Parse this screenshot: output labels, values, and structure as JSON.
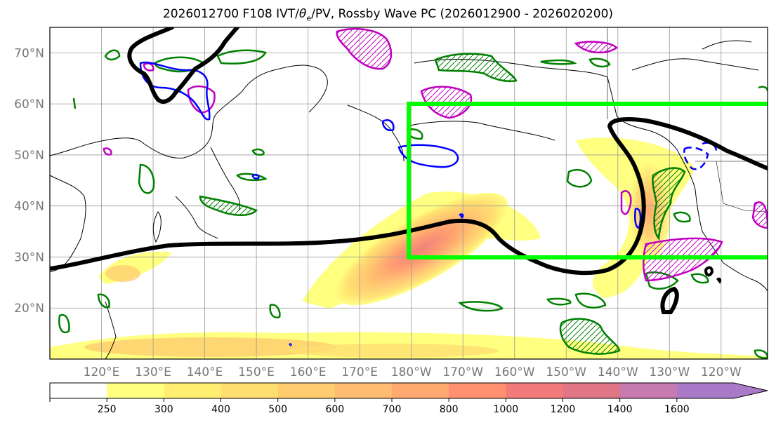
{
  "title": {
    "prefix": "2026012700 F108 IVT/",
    "theta": "θ",
    "sub": "e",
    "suffix": "/PV, Rossby Wave PC (2026012900 - 2026020200)"
  },
  "map": {
    "lat_labels": [
      "70°N",
      "60°N",
      "50°N",
      "40°N",
      "30°N",
      "20°N"
    ],
    "lat_values": [
      70,
      60,
      50,
      40,
      30,
      20
    ],
    "lon_labels": [
      "120°E",
      "130°E",
      "140°E",
      "150°E",
      "160°E",
      "170°E",
      "180°W",
      "170°W",
      "160°W",
      "150°W",
      "140°W",
      "130°W",
      "120°W"
    ],
    "lon_values": [
      120,
      130,
      140,
      150,
      160,
      170,
      180,
      190,
      200,
      210,
      220,
      230,
      240
    ],
    "extent": {
      "lon_min": 110,
      "lon_max": 249,
      "lat_min": 10,
      "lat_max": 75
    },
    "colors": {
      "ivt_shading": "#ffe566",
      "box": "#00ff00",
      "pv_contour": "#000000",
      "theta_e_pos": "#008000",
      "theta_e_neg": "#0000ff",
      "theta_e_alt": "#c000c0",
      "coast": "#000000",
      "grid": "#999999"
    }
  },
  "colorbar": {
    "ticks": [
      "250",
      "300",
      "400",
      "500",
      "600",
      "700",
      "800",
      "1000",
      "1200",
      "1400",
      "1600"
    ],
    "colors": [
      "#ffff80",
      "#ffee70",
      "#ffde70",
      "#ffcd70",
      "#ffbc70",
      "#ffa870",
      "#ff9170",
      "#f27a7a",
      "#e07585",
      "#c77ab0",
      "#a97ac7"
    ]
  }
}
